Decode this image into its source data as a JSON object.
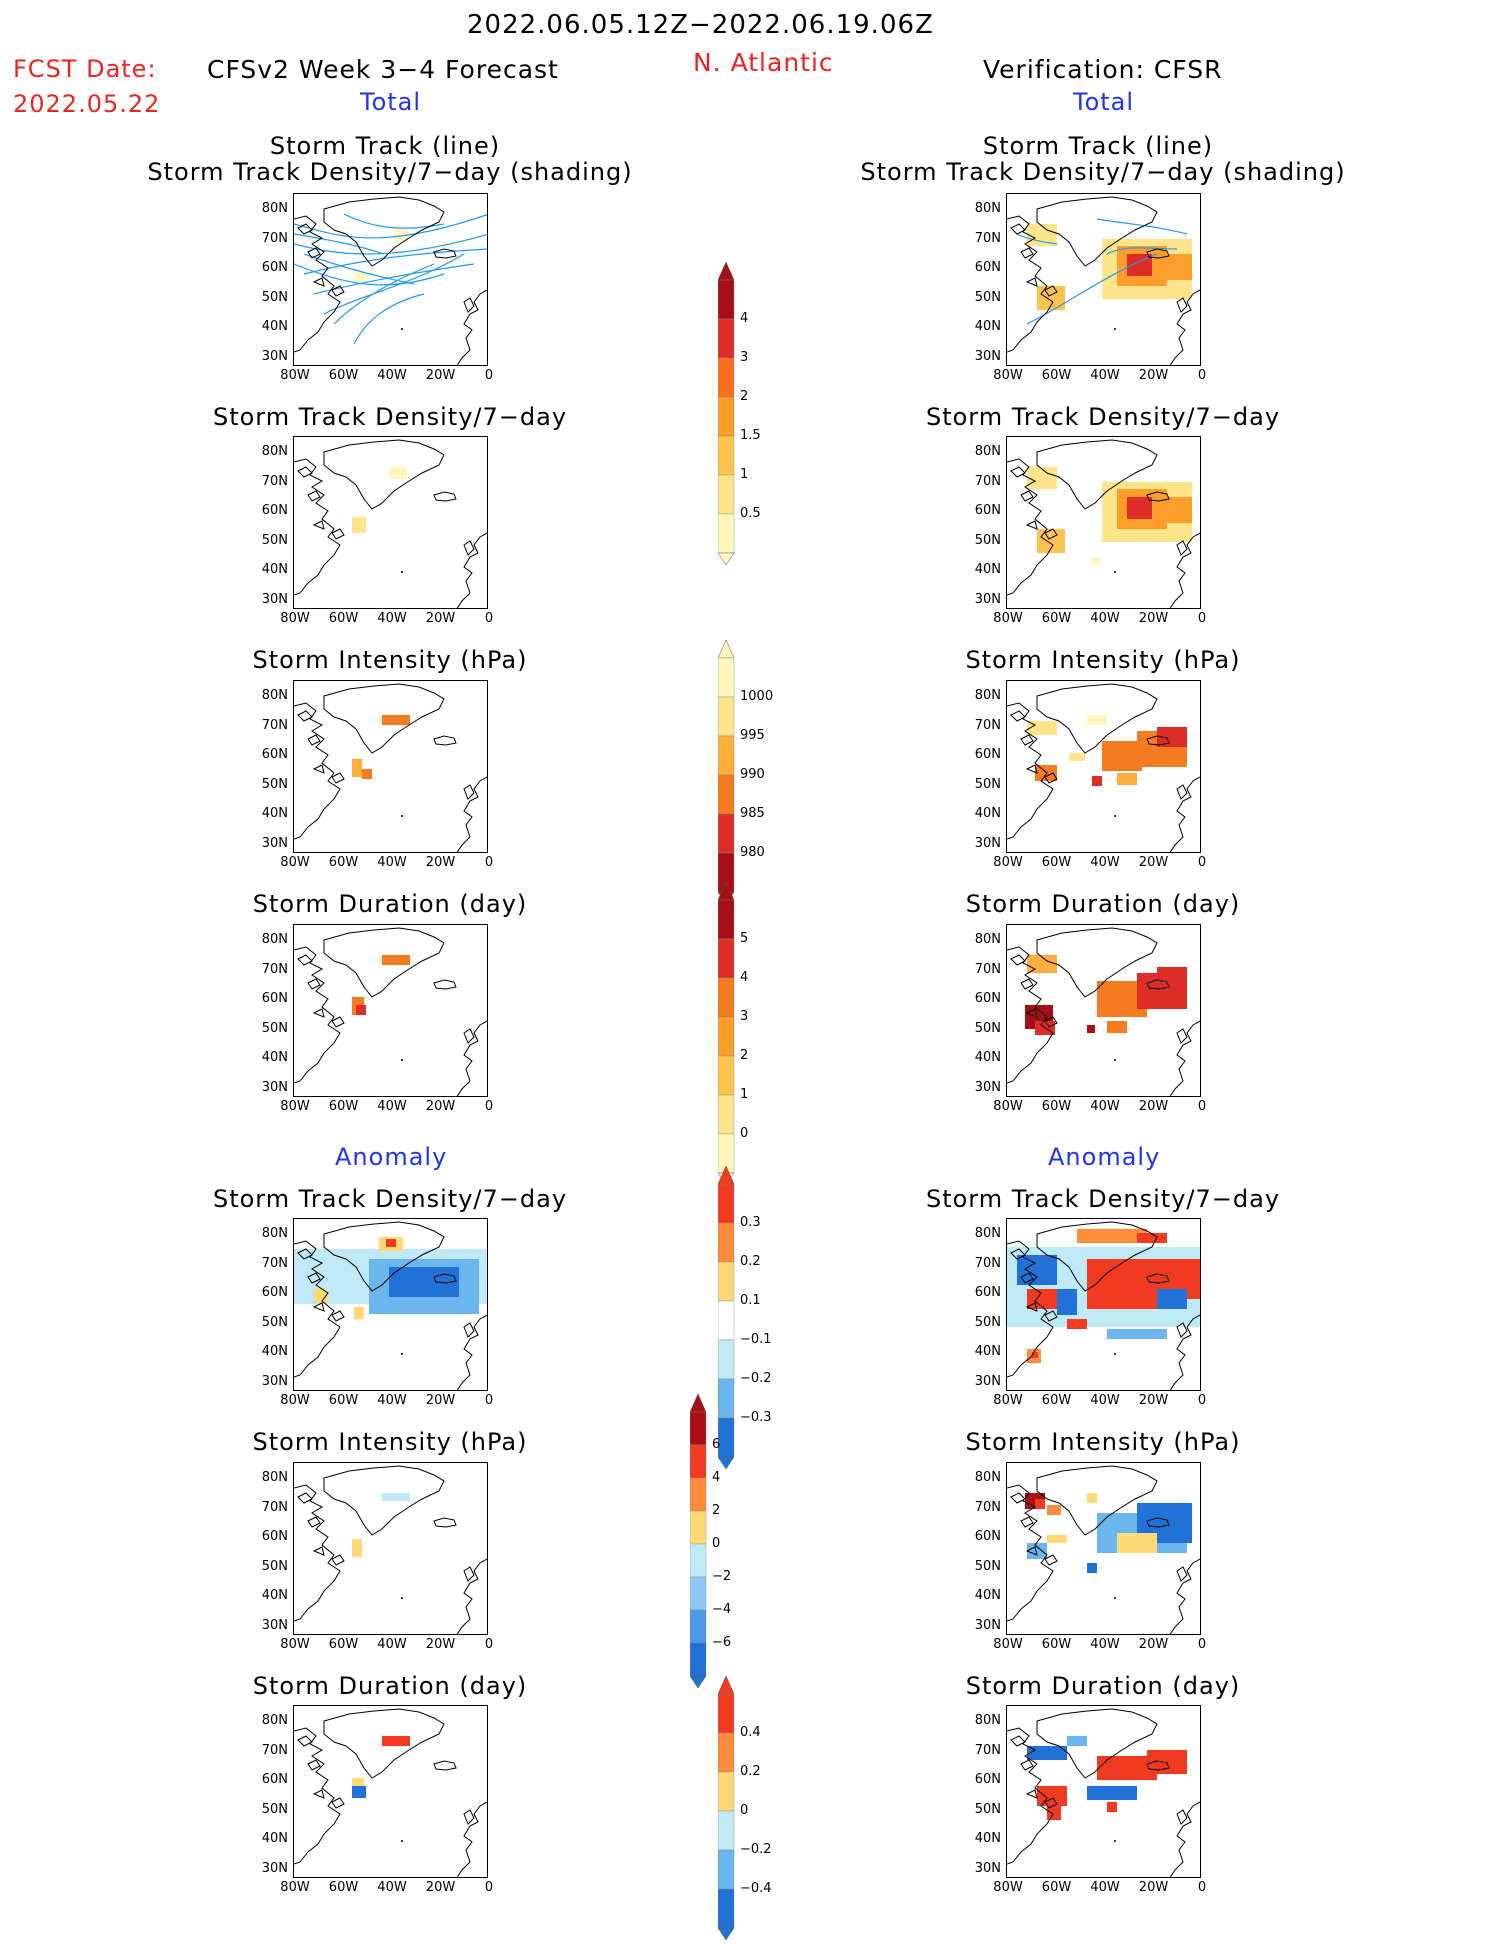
{
  "header": {
    "date_range": "2022.06.05.12Z−2022.06.19.06Z",
    "fcst_label": "FCST Date:",
    "fcst_date": "2022.05.22",
    "left_title": "CFSv2 Week 3−4 Forecast",
    "region": "N. Atlantic",
    "right_title": "Verification: CFSR",
    "left_total": "Total",
    "right_total": "Total",
    "left_anomaly": "Anomaly",
    "right_anomaly": "Anomaly"
  },
  "axes": {
    "lat_ticks": [
      "80N",
      "70N",
      "60N",
      "50N",
      "40N",
      "30N"
    ],
    "lon_ticks": [
      "80W",
      "60W",
      "40W",
      "20W",
      "0"
    ]
  },
  "panels": [
    {
      "id": "fc-track",
      "title1": "Storm Track (line)",
      "title2": "Storm Track Density/7−day (shading)"
    },
    {
      "id": "ob-track",
      "title1": "Storm Track (line)",
      "title2": "Storm Track Density/7−day (shading)"
    },
    {
      "id": "fc-density",
      "title1": "Storm Track Density/7−day"
    },
    {
      "id": "ob-density",
      "title1": "Storm Track Density/7−day"
    },
    {
      "id": "fc-intensity",
      "title1": "Storm Intensity (hPa)"
    },
    {
      "id": "ob-intensity",
      "title1": "Storm Intensity (hPa)"
    },
    {
      "id": "fc-duration",
      "title1": "Storm Duration (day)"
    },
    {
      "id": "ob-duration",
      "title1": "Storm Duration (day)"
    },
    {
      "id": "fc-anom-density",
      "title1": "Storm Track Density/7−day"
    },
    {
      "id": "ob-anom-density",
      "title1": "Storm Track Density/7−day"
    },
    {
      "id": "fc-anom-intensity",
      "title1": "Storm Intensity (hPa)"
    },
    {
      "id": "ob-anom-intensity",
      "title1": "Storm Intensity (hPa)"
    },
    {
      "id": "fc-anom-duration",
      "title1": "Storm Duration (day)"
    },
    {
      "id": "ob-anom-duration",
      "title1": "Storm Duration (day)"
    }
  ],
  "colorbars": [
    {
      "id": "density",
      "labels": [
        "4",
        "3",
        "2",
        "1.5",
        "1",
        "0.5"
      ],
      "colors": [
        "#a50f15",
        "#de2d26",
        "#fc6e22",
        "#fd9d2a",
        "#fdc34f",
        "#fee48a",
        "#fff7bc"
      ]
    },
    {
      "id": "intensity",
      "labels": [
        "1000",
        "995",
        "990",
        "985",
        "980"
      ],
      "colors": [
        "#fff7bc",
        "#fee48a",
        "#fdae3b",
        "#f47b20",
        "#de2d26",
        "#a50f15"
      ]
    },
    {
      "id": "duration",
      "labels": [
        "5",
        "4",
        "3",
        "2",
        "1",
        "0"
      ],
      "colors": [
        "#a50f15",
        "#de2d26",
        "#f47b20",
        "#fd9d2a",
        "#fdc34f",
        "#fee48a",
        "#fff7bc"
      ]
    },
    {
      "id": "anom-density",
      "labels": [
        "0.3",
        "0.2",
        "0.1",
        "−0.1",
        "−0.2",
        "−0.3"
      ],
      "colors": [
        "#f03b20",
        "#fd8d3c",
        "#fed976",
        "#ffffff",
        "#bfe9f7",
        "#6cb6f0",
        "#2171d6"
      ]
    },
    {
      "id": "anom-intensity",
      "labels": [
        "6",
        "4",
        "2",
        "0",
        "−2",
        "−4",
        "−6"
      ],
      "colors": [
        "#a50f15",
        "#f03b20",
        "#fd8d3c",
        "#fed976",
        "#bfe9f7",
        "#8ec8f5",
        "#4f9ae8",
        "#2171d6"
      ]
    },
    {
      "id": "anom-duration",
      "labels": [
        "0.4",
        "0.2",
        "0",
        "−0.2",
        "−0.4"
      ],
      "colors": [
        "#f03b20",
        "#fd8d3c",
        "#fed976",
        "#bfe9f7",
        "#6cb6f0",
        "#2171d6"
      ]
    }
  ]
}
